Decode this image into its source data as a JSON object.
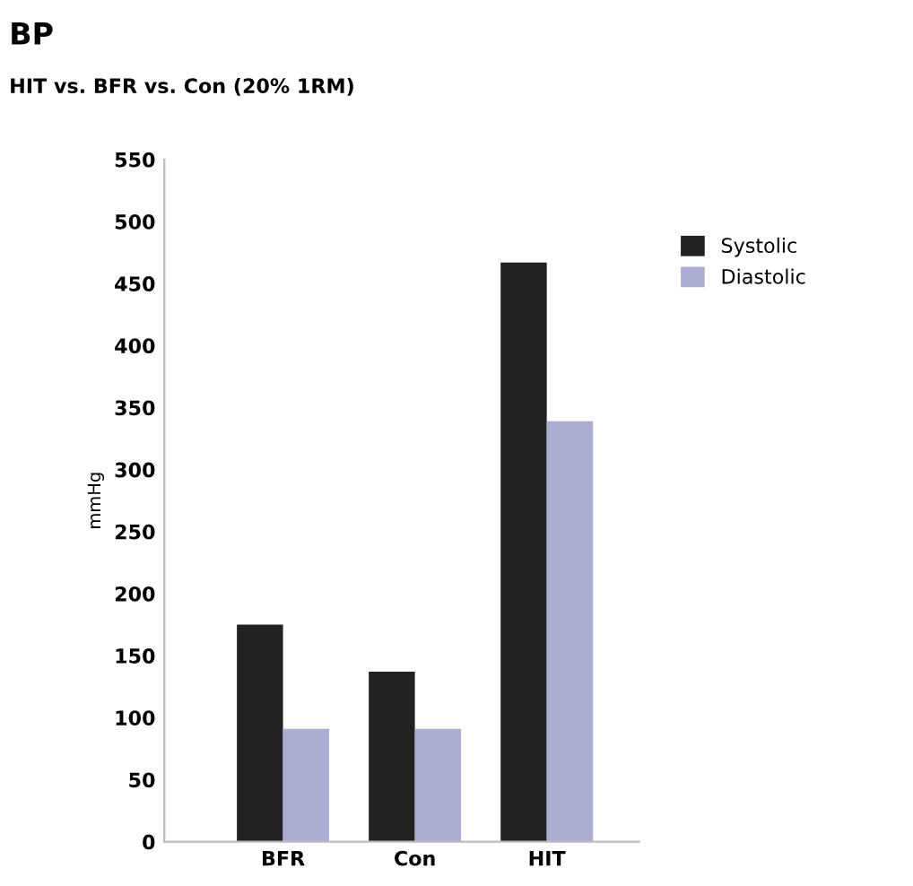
{
  "chart_data": {
    "type": "bar",
    "title": "BP",
    "subtitle": "HIT vs. BFR vs. Con (20% 1RM)",
    "ylabel": "mmHg",
    "categories": [
      "BFR",
      "Con",
      "HIT"
    ],
    "series": [
      {
        "name": "Systolic",
        "color": "#222222",
        "values": [
          175,
          137,
          467
        ]
      },
      {
        "name": "Diastolic",
        "color": "#abadd3",
        "values": [
          91,
          91,
          339
        ]
      }
    ],
    "ylim": [
      0,
      550
    ],
    "yticks": [
      0,
      50,
      100,
      150,
      200,
      250,
      300,
      350,
      400,
      450,
      500,
      550
    ],
    "grid": false,
    "legend": "right"
  }
}
